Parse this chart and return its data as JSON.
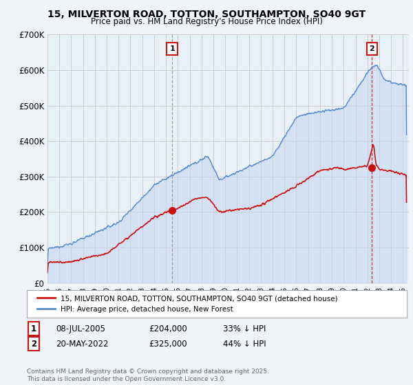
{
  "title": "15, MILVERTON ROAD, TOTTON, SOUTHAMPTON, SO40 9GT",
  "subtitle": "Price paid vs. HM Land Registry's House Price Index (HPI)",
  "legend_label_red": "15, MILVERTON ROAD, TOTTON, SOUTHAMPTON, SO40 9GT (detached house)",
  "legend_label_blue": "HPI: Average price, detached house, New Forest",
  "annotation1_date": "08-JUL-2005",
  "annotation1_price": "£204,000",
  "annotation1_hpi": "33% ↓ HPI",
  "annotation2_date": "20-MAY-2022",
  "annotation2_price": "£325,000",
  "annotation2_hpi": "44% ↓ HPI",
  "footer": "Contains HM Land Registry data © Crown copyright and database right 2025.\nThis data is licensed under the Open Government Licence v3.0.",
  "background_color": "#f0f4f8",
  "plot_bg_color": "#e8f0f8",
  "red_color": "#cc1111",
  "blue_color": "#5588cc",
  "blue_fill_color": "#c8d8ee",
  "grid_color": "#cccccc",
  "vline1_color": "#999999",
  "vline2_color": "#cc1111",
  "ylim": [
    0,
    700000
  ],
  "yticks": [
    0,
    100000,
    200000,
    300000,
    400000,
    500000,
    600000,
    700000
  ],
  "ytick_labels": [
    "£0",
    "£100K",
    "£200K",
    "£300K",
    "£400K",
    "£500K",
    "£600K",
    "£700K"
  ],
  "purchase_year1": 2005.52,
  "purchase_price1": 204000,
  "purchase_year2": 2022.38,
  "purchase_price2": 325000,
  "vline1_year": 2005.52,
  "vline2_year": 2022.38
}
